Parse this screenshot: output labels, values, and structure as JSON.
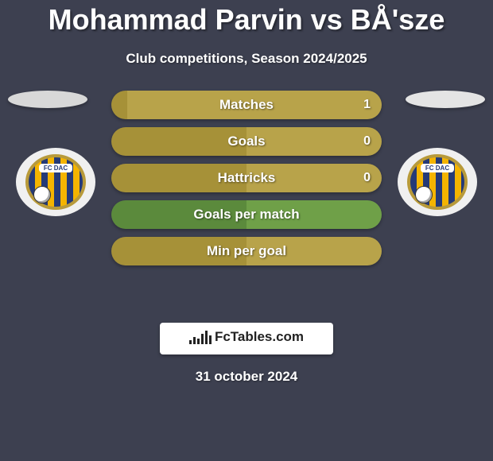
{
  "title": "Mohammad Parvin vs BÅ'sze",
  "subtitle": "Club competitions, Season 2024/2025",
  "date": "31 october 2024",
  "footer_brand": "FcTables.com",
  "colors": {
    "background": "#3d4050",
    "left_bar": "#a69138",
    "right_bar": "#b8a34a",
    "left_ellipse": "#d8d8d8",
    "right_ellipse": "#e4e4e4",
    "text": "#ffffff"
  },
  "badge": {
    "club_text": "FC DAC",
    "stripe_a": "#253a77",
    "stripe_b": "#f4b400",
    "ring": "#b89a3a"
  },
  "bars": [
    {
      "label": "Matches",
      "left": "",
      "right": "1",
      "left_pct": 6,
      "right_pct": 94,
      "palette": "olive",
      "show_left": false,
      "show_right": true
    },
    {
      "label": "Goals",
      "left": "",
      "right": "0",
      "left_pct": 50,
      "right_pct": 50,
      "palette": "olive",
      "show_left": false,
      "show_right": true
    },
    {
      "label": "Hattricks",
      "left": "",
      "right": "0",
      "left_pct": 50,
      "right_pct": 50,
      "palette": "olive",
      "show_left": false,
      "show_right": true
    },
    {
      "label": "Goals per match",
      "left": "",
      "right": "",
      "left_pct": 50,
      "right_pct": 50,
      "palette": "green",
      "show_left": false,
      "show_right": false
    },
    {
      "label": "Min per goal",
      "left": "",
      "right": "",
      "left_pct": 50,
      "right_pct": 50,
      "palette": "olive",
      "show_left": false,
      "show_right": false
    }
  ],
  "palettes": {
    "olive": {
      "left": "#a69138",
      "right": "#b8a34a"
    },
    "green": {
      "left": "#5b8a3c",
      "right": "#6fa048"
    }
  },
  "logo_bar_heights": [
    5,
    9,
    7,
    13,
    17,
    11
  ]
}
